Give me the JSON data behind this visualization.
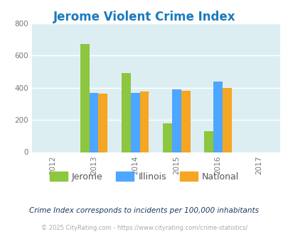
{
  "title": "Jerome Violent Crime Index",
  "title_color": "#1a7abf",
  "years": [
    2012,
    2013,
    2014,
    2015,
    2016,
    2017
  ],
  "categories": [
    "Jerome",
    "Illinois",
    "National"
  ],
  "values": {
    "Jerome": [
      null,
      670,
      490,
      180,
      128,
      null
    ],
    "Illinois": [
      null,
      370,
      370,
      390,
      440,
      null
    ],
    "National": [
      null,
      365,
      375,
      383,
      400,
      null
    ]
  },
  "bar_colors": {
    "Jerome": "#8dc63f",
    "Illinois": "#4da6ff",
    "National": "#f5a623"
  },
  "ylim": [
    0,
    800
  ],
  "yticks": [
    0,
    200,
    400,
    600,
    800
  ],
  "plot_bg": "#ddeef3",
  "outer_bg": "#ffffff",
  "grid_color": "#ffffff",
  "footnote1": "Crime Index corresponds to incidents per 100,000 inhabitants",
  "footnote2": "© 2025 CityRating.com - https://www.cityrating.com/crime-statistics/",
  "footnote_color1": "#1a3a5c",
  "footnote_color2": "#aaaaaa",
  "bar_width": 0.22
}
